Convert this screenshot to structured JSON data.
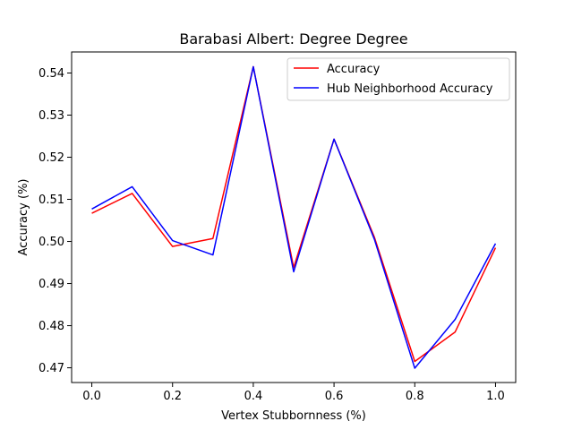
{
  "chart_data": {
    "type": "line",
    "title": "Barabasi Albert: Degree Degree",
    "xlabel": "Vertex Stubbornness (%)",
    "ylabel": "Accuracy (%)",
    "x": [
      0.0,
      0.1,
      0.2,
      0.3,
      0.4,
      0.5,
      0.6,
      0.7,
      0.8,
      0.9,
      1.0
    ],
    "xlim": [
      -0.05,
      1.05
    ],
    "ylim": [
      0.4665,
      0.545
    ],
    "xticks": [
      0.0,
      0.2,
      0.4,
      0.6,
      0.8,
      1.0
    ],
    "xtick_labels": [
      "0.0",
      "0.2",
      "0.4",
      "0.6",
      "0.8",
      "1.0"
    ],
    "yticks": [
      0.47,
      0.48,
      0.49,
      0.5,
      0.51,
      0.52,
      0.53,
      0.54
    ],
    "ytick_labels": [
      "0.47",
      "0.48",
      "0.49",
      "0.50",
      "0.51",
      "0.52",
      "0.53",
      "0.54"
    ],
    "grid": false,
    "legend_position": "top-right",
    "series": [
      {
        "name": "Accuracy",
        "color": "#ff0000",
        "values": [
          0.5067,
          0.5114,
          0.4988,
          0.5007,
          0.5415,
          0.4938,
          0.5243,
          0.501,
          0.4715,
          0.4785,
          0.4985
        ]
      },
      {
        "name": "Hub Neighborhood Accuracy",
        "color": "#0000ff",
        "values": [
          0.5077,
          0.513,
          0.5002,
          0.4968,
          0.5415,
          0.4928,
          0.5243,
          0.5005,
          0.4699,
          0.4815,
          0.4995
        ]
      }
    ]
  }
}
